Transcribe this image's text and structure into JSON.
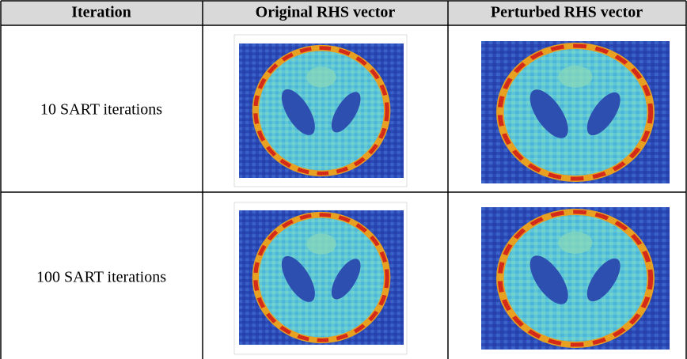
{
  "table": {
    "header": [
      "Iteration",
      "Original RHS vector",
      "Perturbed RHS vector"
    ],
    "rows": [
      [
        "10 SART iterations"
      ],
      [
        "100 SART iterations"
      ]
    ]
  }
}
